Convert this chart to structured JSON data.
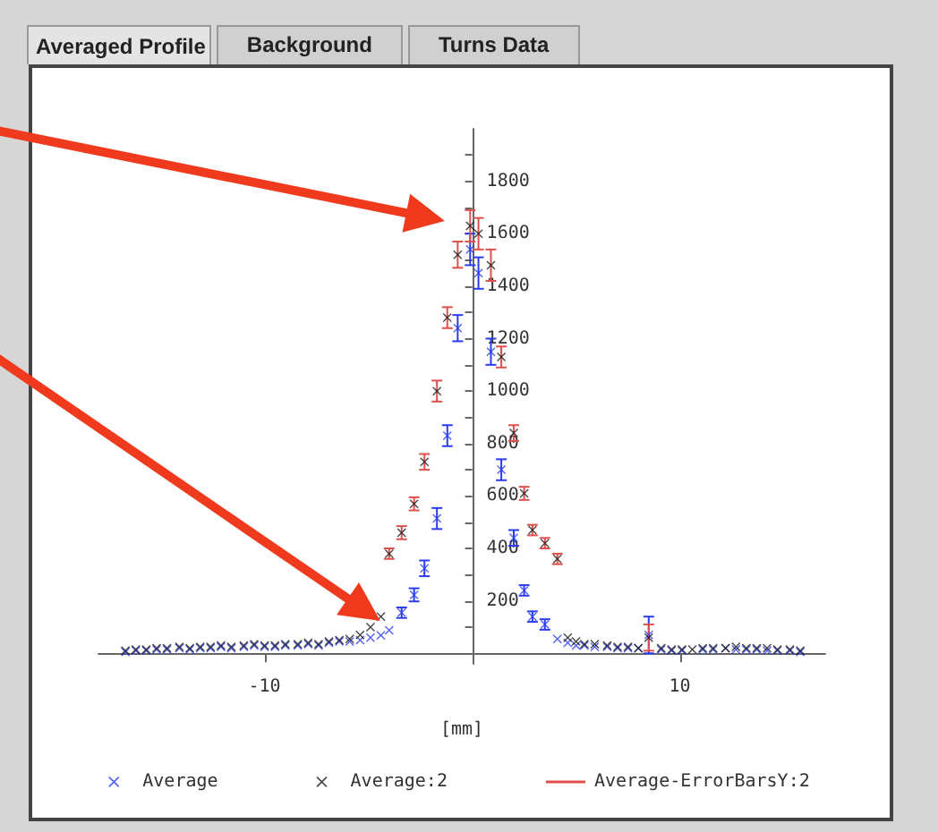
{
  "chart_data": {
    "type": "scatter",
    "annotations": [
      "Averaged Profile",
      "Background",
      "Turns Data"
    ],
    "xlabel": "[mm]",
    "x": [
      -16.7,
      -16.2,
      -15.7,
      -15.2,
      -14.7,
      -14.1,
      -13.6,
      -13.1,
      -12.6,
      -12.1,
      -11.6,
      -11.0,
      -10.5,
      -10.0,
      -9.5,
      -9.0,
      -8.4,
      -7.9,
      -7.4,
      -6.9,
      -6.4,
      -5.9,
      -5.4,
      -4.9,
      -4.4,
      -4.0,
      -3.4,
      -2.8,
      -2.3,
      -1.7,
      -1.2,
      -0.7,
      -0.1,
      0.3,
      0.9,
      1.4,
      2.0,
      2.5,
      2.9,
      3.5,
      4.1,
      4.6,
      5.0,
      5.4,
      5.9,
      6.5,
      7.0,
      7.5,
      8.0,
      8.5,
      9.1,
      9.6,
      10.1,
      10.6,
      11.1,
      11.6,
      12.2,
      12.7,
      13.2,
      13.7,
      14.2,
      14.7,
      15.3,
      15.8
    ],
    "series": [
      {
        "name": "Average",
        "color": "#2a3cf0",
        "marker": "cross",
        "values": [
          5,
          10,
          10,
          15,
          15,
          20,
          15,
          20,
          20,
          25,
          20,
          25,
          30,
          25,
          25,
          30,
          30,
          35,
          30,
          40,
          45,
          45,
          50,
          60,
          68,
          88,
          155,
          223,
          324,
          514,
          830,
          1240,
          1540,
          1450,
          1150,
          700,
          440,
          240,
          140,
          110,
          55,
          40,
          30,
          30,
          25,
          25,
          20,
          20,
          20,
          70,
          15,
          10,
          10,
          null,
          15,
          15,
          20,
          15,
          15,
          15,
          10,
          10,
          10,
          5
        ],
        "errors": [
          null,
          null,
          null,
          null,
          null,
          null,
          null,
          null,
          null,
          null,
          null,
          null,
          null,
          null,
          null,
          null,
          null,
          null,
          null,
          null,
          null,
          null,
          null,
          null,
          null,
          null,
          20,
          25,
          30,
          40,
          40,
          50,
          60,
          60,
          50,
          40,
          30,
          20,
          20,
          20,
          null,
          null,
          null,
          null,
          null,
          null,
          null,
          null,
          null,
          70,
          null,
          null,
          null,
          null,
          null,
          null,
          null,
          null,
          null,
          null,
          null,
          null,
          null,
          null
        ]
      },
      {
        "name": "Average:2",
        "color": "#1a1a1a",
        "marker": "cross",
        "values": [
          10,
          15,
          15,
          20,
          20,
          25,
          20,
          25,
          25,
          30,
          25,
          30,
          35,
          30,
          30,
          35,
          35,
          40,
          35,
          45,
          50,
          55,
          70,
          100,
          140,
          380,
          460,
          570,
          730,
          1000,
          1280,
          1520,
          1630,
          1600,
          1480,
          1130,
          840,
          610,
          470,
          420,
          360,
          60,
          45,
          35,
          35,
          30,
          25,
          25,
          20,
          60,
          20,
          15,
          15,
          15,
          20,
          20,
          20,
          25,
          20,
          20,
          20,
          15,
          15,
          10
        ],
        "errors": [
          null,
          null,
          null,
          null,
          null,
          null,
          null,
          null,
          null,
          null,
          null,
          null,
          null,
          null,
          null,
          null,
          null,
          null,
          null,
          null,
          null,
          null,
          null,
          null,
          null,
          20,
          25,
          25,
          30,
          40,
          40,
          50,
          60,
          60,
          60,
          40,
          30,
          25,
          20,
          20,
          20,
          null,
          null,
          null,
          null,
          null,
          null,
          null,
          null,
          50,
          null,
          null,
          null,
          null,
          null,
          null,
          null,
          null,
          null,
          null,
          null,
          null,
          null,
          null
        ]
      },
      {
        "name": "Average-ErrorBarsY:2",
        "color": "#e0504a",
        "type": "line",
        "values": [
          null,
          null,
          null,
          null,
          null,
          null,
          null,
          null,
          null,
          null,
          null,
          null,
          null,
          null,
          null,
          null,
          null,
          null,
          null,
          null,
          null,
          null,
          null,
          null,
          null,
          null,
          null,
          null,
          null,
          null,
          null,
          null,
          null,
          null,
          null,
          null,
          null,
          null,
          null,
          null,
          null,
          null,
          null,
          null,
          null,
          null,
          null,
          null,
          null,
          null,
          null,
          null,
          null,
          null,
          null,
          null,
          null,
          null,
          null,
          null,
          null,
          null,
          null,
          null
        ]
      }
    ],
    "xlim": [
      -18,
      17
    ],
    "xticks": [
      -10,
      10
    ],
    "ylim": [
      -40,
      2000
    ],
    "yticks": [
      {
        "value": 0,
        "label": null
      },
      {
        "value": 100,
        "label": null
      },
      200,
      {
        "value": 300,
        "label": null
      },
      400,
      {
        "value": 500,
        "label": null
      },
      600,
      {
        "value": 700,
        "label": null
      },
      800,
      {
        "value": 900,
        "label": null
      },
      1000,
      {
        "value": 1100,
        "label": null
      },
      1200,
      {
        "value": 1300,
        "label": null
      },
      1400,
      {
        "value": 1500,
        "label": null
      },
      1600,
      {
        "value": 1700,
        "label": null
      },
      1800,
      {
        "value": 1900,
        "label": null
      }
    ],
    "grid": false,
    "legend": "bottom"
  }
}
